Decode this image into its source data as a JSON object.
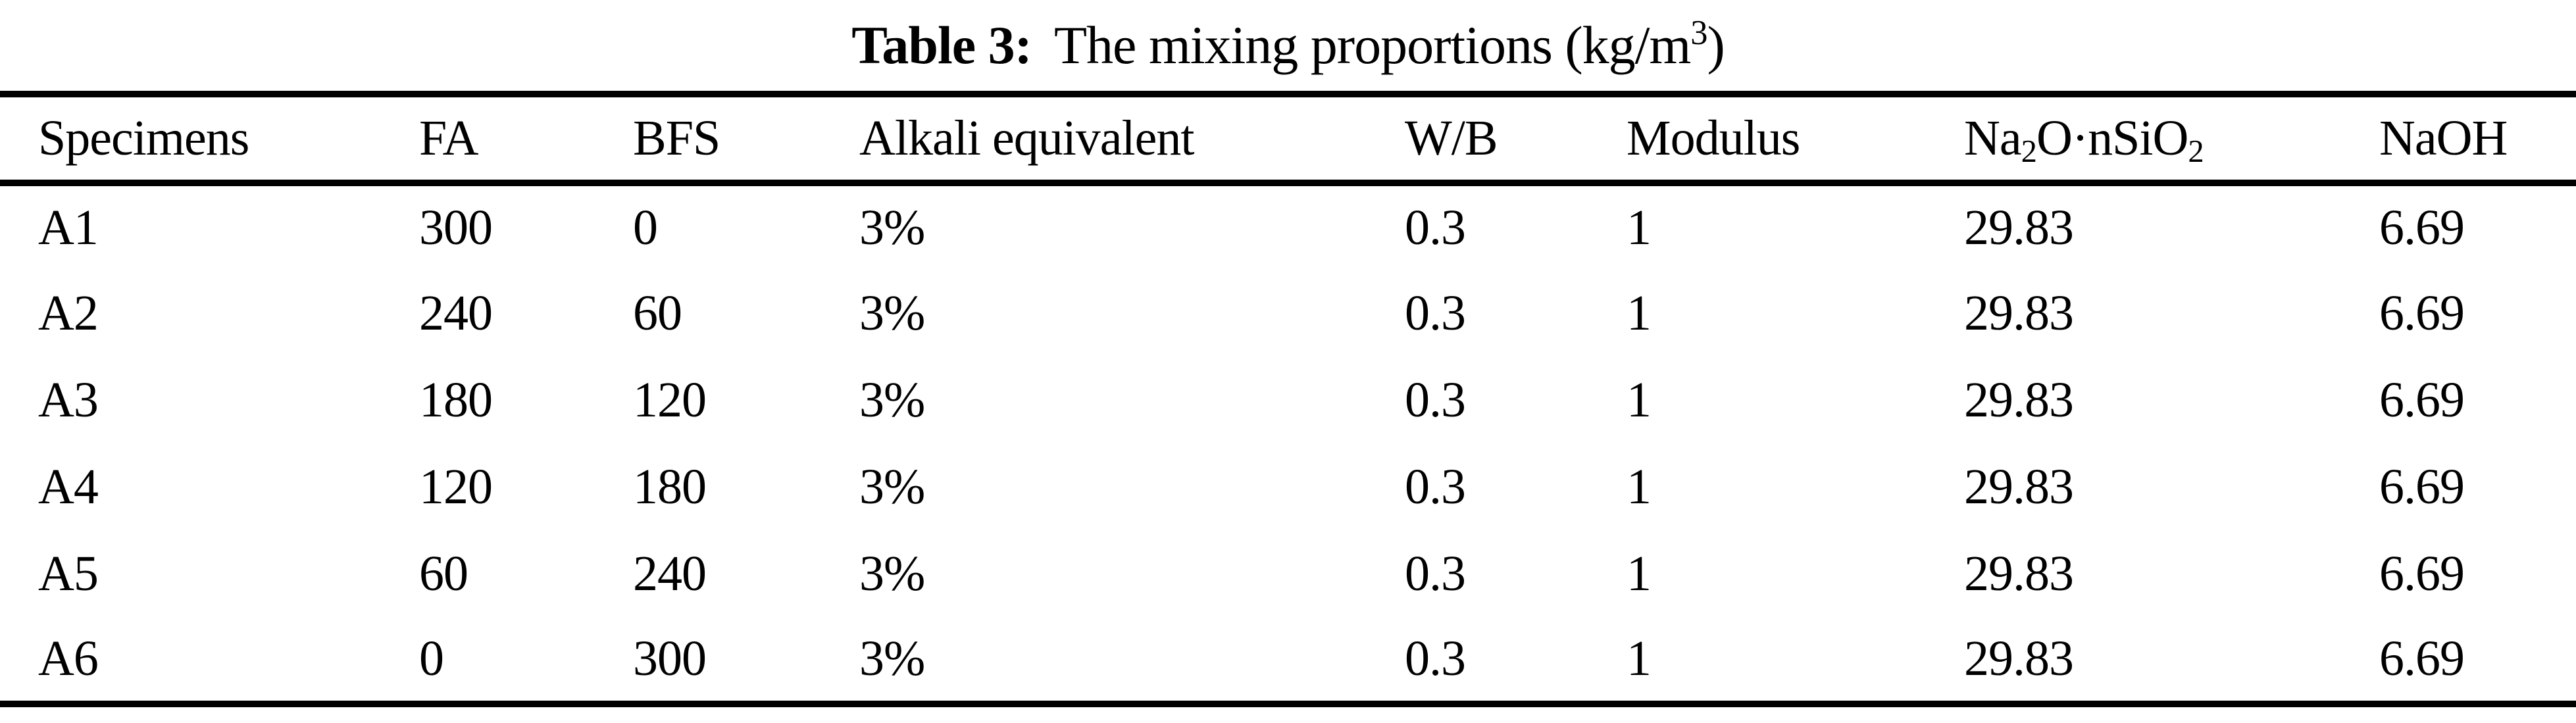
{
  "caption": {
    "label": "Table 3:",
    "text": "The mixing proportions (kg/m^{3})"
  },
  "table": {
    "columns": [
      {
        "key": "specimens",
        "label": "Specimens"
      },
      {
        "key": "fa",
        "label": "FA"
      },
      {
        "key": "bfs",
        "label": "BFS"
      },
      {
        "key": "alkali-equivalent",
        "label": "Alkali equivalent"
      },
      {
        "key": "wb",
        "label": "W/B"
      },
      {
        "key": "modulus",
        "label": "Modulus"
      },
      {
        "key": "na2o-nsio2",
        "label": "Na_{2}O·nSiO_{2}"
      },
      {
        "key": "naoh",
        "label": "NaOH"
      }
    ],
    "rows": [
      [
        "A1",
        "300",
        "0",
        "3%",
        "0.3",
        "1",
        "29.83",
        "6.69"
      ],
      [
        "A2",
        "240",
        "60",
        "3%",
        "0.3",
        "1",
        "29.83",
        "6.69"
      ],
      [
        "A3",
        "180",
        "120",
        "3%",
        "0.3",
        "1",
        "29.83",
        "6.69"
      ],
      [
        "A4",
        "120",
        "180",
        "3%",
        "0.3",
        "1",
        "29.83",
        "6.69"
      ],
      [
        "A5",
        "60",
        "240",
        "3%",
        "0.3",
        "1",
        "29.83",
        "6.69"
      ],
      [
        "A6",
        "0",
        "300",
        "3%",
        "0.3",
        "1",
        "29.83",
        "6.69"
      ]
    ]
  },
  "colors": {
    "text": "#000000",
    "background": "#ffffff",
    "rule": "#000000"
  }
}
